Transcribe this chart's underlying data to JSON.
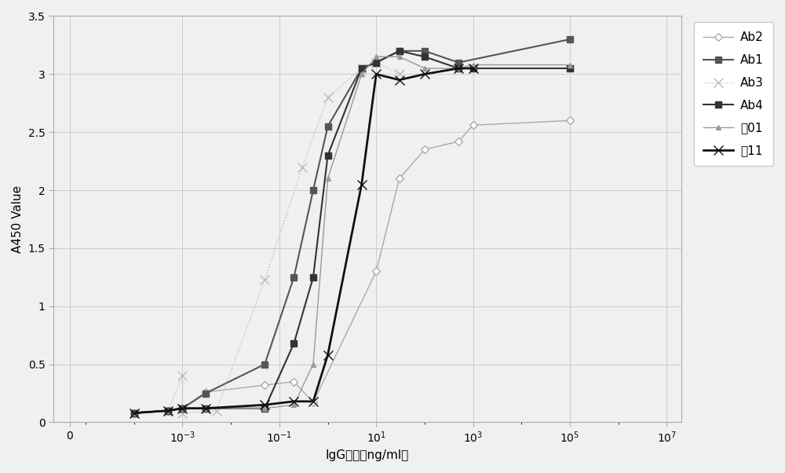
{
  "title": "",
  "xlabel": "IgG浓度（ng/ml）",
  "ylabel": "A450 Value",
  "ylim": [
    0,
    3.5
  ],
  "background_color": "#f0f0f0",
  "series": {
    "Ab2": {
      "color": "#aaaaaa",
      "linestyle": "-",
      "marker": "D",
      "markersize": 5,
      "linewidth": 1.0,
      "markerfacecolor": "white",
      "x": [
        0.0001,
        0.0005,
        0.001,
        0.003,
        0.05,
        0.2,
        0.5,
        10,
        30,
        100,
        500,
        1000,
        100000
      ],
      "y": [
        0.08,
        0.1,
        0.12,
        0.26,
        0.32,
        0.35,
        0.17,
        1.3,
        2.1,
        2.35,
        2.42,
        2.56,
        2.6
      ]
    },
    "Ab1": {
      "color": "#555555",
      "linestyle": "-",
      "marker": "s",
      "markersize": 6,
      "linewidth": 1.5,
      "markerfacecolor": "#555555",
      "x": [
        0.0001,
        0.0005,
        0.001,
        0.003,
        0.05,
        0.2,
        0.5,
        1,
        5,
        10,
        30,
        100,
        500,
        100000
      ],
      "y": [
        0.08,
        0.1,
        0.12,
        0.25,
        0.5,
        1.25,
        2.0,
        2.55,
        3.05,
        3.1,
        3.2,
        3.2,
        3.1,
        3.3
      ]
    },
    "Ab3": {
      "color": "#bbbbbb",
      "linestyle": ":",
      "marker": "x",
      "markersize": 8,
      "linewidth": 1.0,
      "markerfacecolor": "#bbbbbb",
      "x": [
        0.0001,
        0.0005,
        0.001,
        0.001,
        0.005,
        0.05,
        0.3,
        1,
        5,
        10,
        30
      ],
      "y": [
        0.08,
        0.1,
        0.4,
        0.08,
        0.1,
        1.23,
        2.2,
        2.8,
        3.05,
        3.1,
        3.0
      ]
    },
    "Ab4": {
      "color": "#333333",
      "linestyle": "-",
      "marker": "s",
      "markersize": 6,
      "linewidth": 1.5,
      "markerfacecolor": "#333333",
      "x": [
        0.0001,
        0.0005,
        0.001,
        0.003,
        0.05,
        0.2,
        0.5,
        1,
        5,
        10,
        30,
        100,
        500,
        1000,
        100000
      ],
      "y": [
        0.08,
        0.1,
        0.12,
        0.12,
        0.12,
        0.68,
        1.25,
        2.3,
        3.05,
        3.1,
        3.2,
        3.15,
        3.05,
        3.05,
        3.05
      ]
    },
    "标01": {
      "color": "#999999",
      "linestyle": "-",
      "marker": "^",
      "markersize": 5,
      "linewidth": 1.0,
      "markerfacecolor": "#999999",
      "x": [
        0.0001,
        0.0005,
        0.001,
        0.003,
        0.05,
        0.2,
        0.5,
        1,
        5,
        10,
        30,
        100,
        500,
        1000,
        100000
      ],
      "y": [
        0.08,
        0.1,
        0.12,
        0.12,
        0.12,
        0.15,
        0.5,
        2.1,
        3.0,
        3.15,
        3.15,
        3.05,
        3.05,
        3.08,
        3.08
      ]
    },
    "标11": {
      "color": "#111111",
      "linestyle": "-",
      "marker": "x",
      "markersize": 8,
      "linewidth": 2.0,
      "markerfacecolor": "#111111",
      "x": [
        0.0001,
        0.0005,
        0.001,
        0.003,
        0.05,
        0.2,
        0.5,
        1,
        5,
        10,
        30,
        100,
        500,
        1000
      ],
      "y": [
        0.08,
        0.1,
        0.12,
        0.12,
        0.15,
        0.18,
        0.18,
        0.58,
        2.05,
        3.0,
        2.95,
        3.0,
        3.05,
        3.05
      ]
    }
  }
}
